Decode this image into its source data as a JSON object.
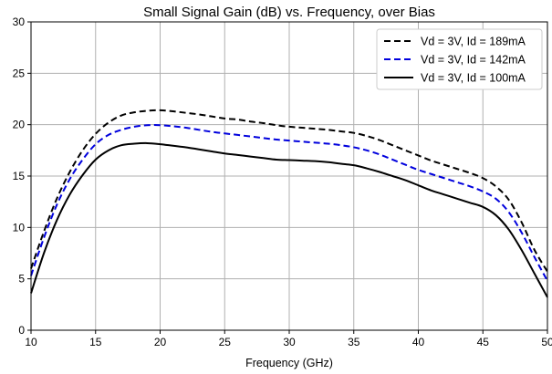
{
  "chart_data": {
    "type": "line",
    "title": "Small Signal Gain (dB) vs. Frequency, over Bias",
    "xlabel": "Frequency (GHz)",
    "ylabel": "",
    "xlim": [
      10,
      50
    ],
    "ylim": [
      0,
      30
    ],
    "xticks": [
      10,
      15,
      20,
      25,
      30,
      35,
      40,
      45,
      50
    ],
    "yticks": [
      0,
      5,
      10,
      15,
      20,
      25,
      30
    ],
    "grid": true,
    "legend_position": "top-right",
    "x": [
      10,
      11,
      12,
      13,
      14,
      15,
      16,
      17,
      18,
      19,
      20,
      21,
      22,
      23,
      24,
      25,
      26,
      27,
      28,
      29,
      30,
      31,
      32,
      33,
      34,
      35,
      36,
      37,
      38,
      39,
      40,
      41,
      42,
      43,
      44,
      45,
      46,
      47,
      48,
      49,
      50
    ],
    "series": [
      {
        "name": "Vd = 3V, Id = 189mA",
        "color": "#000000",
        "dash": "dashed",
        "values": [
          6.0,
          9.6,
          12.8,
          15.4,
          17.5,
          19.1,
          20.2,
          20.9,
          21.2,
          21.35,
          21.4,
          21.3,
          21.15,
          21.0,
          20.8,
          20.6,
          20.5,
          20.3,
          20.15,
          19.95,
          19.8,
          19.7,
          19.6,
          19.5,
          19.35,
          19.2,
          18.9,
          18.5,
          18.0,
          17.5,
          17.0,
          16.5,
          16.1,
          15.7,
          15.3,
          14.8,
          14.0,
          12.7,
          10.5,
          7.8,
          5.7
        ]
      },
      {
        "name": "Vd = 3V, Id = 142mA",
        "color": "#0000dd",
        "dash": "dashed",
        "values": [
          5.3,
          9.0,
          12.2,
          14.7,
          16.6,
          18.1,
          19.0,
          19.5,
          19.8,
          19.95,
          19.95,
          19.85,
          19.7,
          19.5,
          19.3,
          19.15,
          19.0,
          18.85,
          18.7,
          18.55,
          18.45,
          18.35,
          18.25,
          18.15,
          18.0,
          17.8,
          17.5,
          17.1,
          16.6,
          16.1,
          15.6,
          15.2,
          14.8,
          14.4,
          14.0,
          13.5,
          12.8,
          11.5,
          9.5,
          7.1,
          4.8
        ]
      },
      {
        "name": "Vd = 3V, Id = 100mA",
        "color": "#000000",
        "dash": "solid",
        "values": [
          3.6,
          7.5,
          10.7,
          13.2,
          15.1,
          16.6,
          17.5,
          18.0,
          18.15,
          18.2,
          18.1,
          17.95,
          17.8,
          17.6,
          17.4,
          17.2,
          17.05,
          16.9,
          16.75,
          16.6,
          16.55,
          16.5,
          16.45,
          16.35,
          16.2,
          16.05,
          15.75,
          15.4,
          15.0,
          14.6,
          14.1,
          13.6,
          13.2,
          12.8,
          12.4,
          12.0,
          11.2,
          9.8,
          7.8,
          5.5,
          3.2
        ]
      }
    ]
  }
}
